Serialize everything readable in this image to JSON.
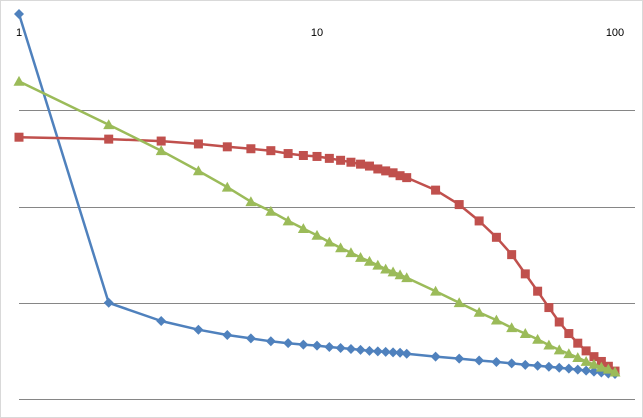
{
  "chart_data": {
    "type": "line",
    "x_scale": "log",
    "xlim": [
      1,
      100
    ],
    "x_tick_labels": [
      "1",
      "10",
      "100"
    ],
    "ylim": [
      0,
      4
    ],
    "y_gridlines": [
      1,
      2,
      3
    ],
    "y_tick_labels": [],
    "legend": "none",
    "series": [
      {
        "marker": "diamond",
        "color": "#4f81bd",
        "x": [
          1,
          2,
          3,
          4,
          5,
          6,
          7,
          8,
          9,
          10,
          11,
          12,
          13,
          14,
          15,
          16,
          17,
          18,
          19,
          20,
          25,
          30,
          35,
          40,
          45,
          50,
          55,
          60,
          65,
          70,
          75,
          80,
          85,
          90,
          95,
          100
        ],
        "y": [
          4.0,
          1.0,
          0.81,
          0.72,
          0.665,
          0.63,
          0.6,
          0.58,
          0.565,
          0.555,
          0.54,
          0.53,
          0.52,
          0.51,
          0.5,
          0.495,
          0.49,
          0.485,
          0.48,
          0.47,
          0.44,
          0.42,
          0.4,
          0.385,
          0.37,
          0.355,
          0.345,
          0.335,
          0.325,
          0.315,
          0.305,
          0.295,
          0.285,
          0.275,
          0.265,
          0.26
        ]
      },
      {
        "marker": "square",
        "color": "#c0504d",
        "x": [
          1,
          2,
          3,
          4,
          5,
          6,
          7,
          8,
          9,
          10,
          11,
          12,
          13,
          14,
          15,
          16,
          17,
          18,
          19,
          20,
          25,
          30,
          35,
          40,
          45,
          50,
          55,
          60,
          65,
          70,
          75,
          80,
          85,
          90,
          95,
          100
        ],
        "y": [
          2.72,
          2.7,
          2.68,
          2.65,
          2.62,
          2.6,
          2.58,
          2.55,
          2.53,
          2.52,
          2.5,
          2.48,
          2.46,
          2.44,
          2.42,
          2.39,
          2.37,
          2.35,
          2.32,
          2.3,
          2.17,
          2.02,
          1.85,
          1.68,
          1.5,
          1.3,
          1.12,
          0.95,
          0.8,
          0.68,
          0.58,
          0.5,
          0.44,
          0.39,
          0.34,
          0.29
        ]
      },
      {
        "marker": "triangle",
        "color": "#9bbb59",
        "x": [
          1,
          2,
          3,
          4,
          5,
          6,
          7,
          8,
          9,
          10,
          11,
          12,
          13,
          14,
          15,
          16,
          17,
          18,
          19,
          20,
          25,
          30,
          35,
          40,
          45,
          50,
          55,
          60,
          65,
          70,
          75,
          80,
          85,
          90,
          95,
          100
        ],
        "y": [
          3.3,
          2.85,
          2.58,
          2.37,
          2.2,
          2.05,
          1.95,
          1.85,
          1.77,
          1.7,
          1.63,
          1.57,
          1.52,
          1.47,
          1.43,
          1.39,
          1.35,
          1.32,
          1.29,
          1.26,
          1.12,
          1.0,
          0.9,
          0.82,
          0.74,
          0.68,
          0.62,
          0.56,
          0.51,
          0.47,
          0.43,
          0.39,
          0.36,
          0.33,
          0.31,
          0.28
        ]
      }
    ]
  }
}
